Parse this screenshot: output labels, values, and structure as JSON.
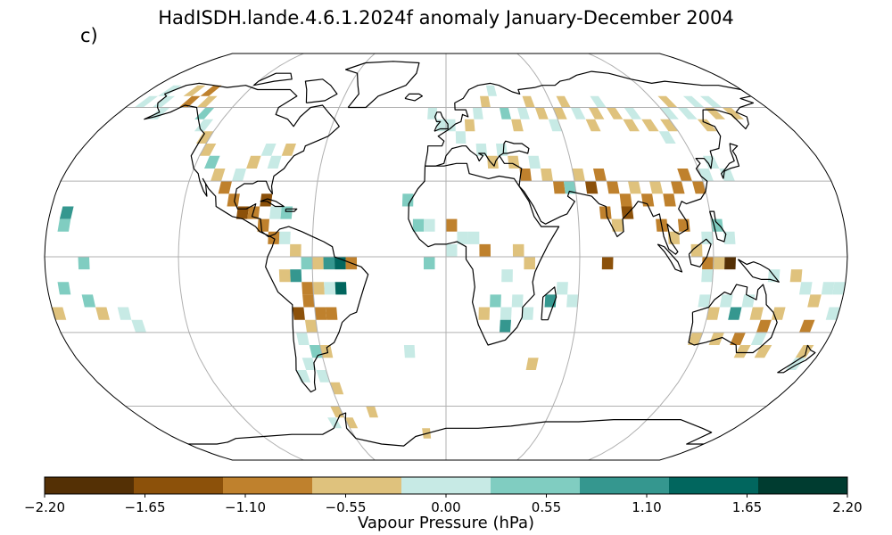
{
  "map": {
    "title": "HadISDH.lande.4.6.1.2024f anomaly January-December 2004",
    "panel_label": "c)",
    "projection": "Robinson",
    "graticule": true,
    "coastlines": true
  },
  "colorbar": {
    "label": "Vapour Pressure (hPa)",
    "ticks": [
      "−2.20",
      "−1.65",
      "−1.10",
      "−0.55",
      "0.00",
      "0.55",
      "1.10",
      "1.65",
      "2.20"
    ],
    "bins": [
      -2.2,
      -1.65,
      -1.1,
      -0.55,
      0.0,
      0.55,
      1.1,
      1.65,
      2.2
    ],
    "colors": [
      "#543005",
      "#8c510a",
      "#bf812d",
      "#dfc27d",
      "#c7eae5",
      "#80cdc1",
      "#35978f",
      "#01665e",
      "#003c30"
    ],
    "palette": "BrBG"
  },
  "chart_data": {
    "type": "heatmap",
    "title": "HadISDH.lande.4.6.1.2024f anomaly January-December 2004",
    "colorbar_label": "Vapour Pressure (hPa)",
    "units": "hPa",
    "grid_resolution_deg": 5,
    "cells": [
      {
        "lon": -172.5,
        "lat": 62.5,
        "v": 0.3
      },
      {
        "lon": -167.5,
        "lat": 67.5,
        "v": 0.4
      },
      {
        "lon": -162.5,
        "lat": 62.5,
        "v": 0.3
      },
      {
        "lon": -157.5,
        "lat": 57.5,
        "v": 0.2
      },
      {
        "lon": -152.5,
        "lat": 67.5,
        "v": -0.3
      },
      {
        "lon": -147.5,
        "lat": 62.5,
        "v": -0.7
      },
      {
        "lon": -142.5,
        "lat": 67.5,
        "v": -0.8
      },
      {
        "lon": -137.5,
        "lat": 62.5,
        "v": -0.4
      },
      {
        "lon": -132.5,
        "lat": 57.5,
        "v": 0.7
      },
      {
        "lon": -127.5,
        "lat": 52.5,
        "v": 0.3
      },
      {
        "lon": -122.5,
        "lat": 47.5,
        "v": -0.3
      },
      {
        "lon": -117.5,
        "lat": 42.5,
        "v": -0.2
      },
      {
        "lon": -112.5,
        "lat": 37.5,
        "v": 0.6
      },
      {
        "lon": -107.5,
        "lat": 32.5,
        "v": -0.4
      },
      {
        "lon": -102.5,
        "lat": 27.5,
        "v": -0.6
      },
      {
        "lon": -97.5,
        "lat": 32.5,
        "v": 0.3
      },
      {
        "lon": -92.5,
        "lat": 37.5,
        "v": -0.3
      },
      {
        "lon": -87.5,
        "lat": 42.5,
        "v": 0.2
      },
      {
        "lon": -82.5,
        "lat": 37.5,
        "v": 0.4
      },
      {
        "lon": -77.5,
        "lat": 42.5,
        "v": -0.2
      },
      {
        "lon": -97.5,
        "lat": 22.5,
        "v": -0.9
      },
      {
        "lon": -92.5,
        "lat": 17.5,
        "v": -1.2
      },
      {
        "lon": -87.5,
        "lat": 17.5,
        "v": -0.8
      },
      {
        "lon": -82.5,
        "lat": 22.5,
        "v": -1.3
      },
      {
        "lon": -77.5,
        "lat": 17.5,
        "v": 0.5
      },
      {
        "lon": -72.5,
        "lat": 17.5,
        "v": 0.7
      },
      {
        "lon": -82.5,
        "lat": 12.5,
        "v": -0.6
      },
      {
        "lon": -77.5,
        "lat": 7.5,
        "v": -0.7
      },
      {
        "lon": -72.5,
        "lat": 7.5,
        "v": 0.3
      },
      {
        "lon": -67.5,
        "lat": 2.5,
        "v": -0.5
      },
      {
        "lon": -62.5,
        "lat": -2.5,
        "v": 0.8
      },
      {
        "lon": -57.5,
        "lat": -2.5,
        "v": -0.3
      },
      {
        "lon": -52.5,
        "lat": -2.5,
        "v": 1.4
      },
      {
        "lon": -47.5,
        "lat": -2.5,
        "v": 2.0
      },
      {
        "lon": -42.5,
        "lat": -2.5,
        "v": -1.0
      },
      {
        "lon": -72.5,
        "lat": -7.5,
        "v": -0.3
      },
      {
        "lon": -67.5,
        "lat": -7.5,
        "v": 1.2
      },
      {
        "lon": -62.5,
        "lat": -12.5,
        "v": -0.8
      },
      {
        "lon": -57.5,
        "lat": -12.5,
        "v": -0.5
      },
      {
        "lon": -52.5,
        "lat": -12.5,
        "v": 0.3
      },
      {
        "lon": -47.5,
        "lat": -12.5,
        "v": 2.1
      },
      {
        "lon": -62.5,
        "lat": -17.5,
        "v": -0.9
      },
      {
        "lon": -57.5,
        "lat": -22.5,
        "v": -1.0
      },
      {
        "lon": -52.5,
        "lat": -22.5,
        "v": -0.6
      },
      {
        "lon": -67.5,
        "lat": -22.5,
        "v": -1.4
      },
      {
        "lon": -62.5,
        "lat": -27.5,
        "v": -0.4
      },
      {
        "lon": -67.5,
        "lat": -32.5,
        "v": 0.3
      },
      {
        "lon": -62.5,
        "lat": -37.5,
        "v": 0.8
      },
      {
        "lon": -67.5,
        "lat": -42.5,
        "v": 0.4
      },
      {
        "lon": -72.5,
        "lat": -47.5,
        "v": 0.3
      },
      {
        "lon": -57.5,
        "lat": -37.5,
        "v": -0.3
      },
      {
        "lon": -62.5,
        "lat": -47.5,
        "v": 0.2
      },
      {
        "lon": -57.5,
        "lat": -52.5,
        "v": -0.2
      },
      {
        "lon": -172.5,
        "lat": 17.5,
        "v": 1.3
      },
      {
        "lon": -172.5,
        "lat": 12.5,
        "v": 0.9
      },
      {
        "lon": -162.5,
        "lat": -2.5,
        "v": 0.8
      },
      {
        "lon": -172.5,
        "lat": -12.5,
        "v": 0.7
      },
      {
        "lon": -162.5,
        "lat": -17.5,
        "v": 0.6
      },
      {
        "lon": -157.5,
        "lat": -22.5,
        "v": -0.3
      },
      {
        "lon": -177.5,
        "lat": -22.5,
        "v": -0.4
      },
      {
        "lon": -147.5,
        "lat": -22.5,
        "v": 0.4
      },
      {
        "lon": -142.5,
        "lat": -27.5,
        "v": 0.3
      },
      {
        "lon": -7.5,
        "lat": 57.5,
        "v": 0.4
      },
      {
        "lon": -2.5,
        "lat": 52.5,
        "v": 0.5
      },
      {
        "lon": 2.5,
        "lat": 52.5,
        "v": 0.3
      },
      {
        "lon": 7.5,
        "lat": 47.5,
        "v": 0.2
      },
      {
        "lon": 12.5,
        "lat": 52.5,
        "v": -0.3
      },
      {
        "lon": 17.5,
        "lat": 57.5,
        "v": 0.4
      },
      {
        "lon": 22.5,
        "lat": 62.5,
        "v": -0.3
      },
      {
        "lon": 27.5,
        "lat": 67.5,
        "v": 0.3
      },
      {
        "lon": 32.5,
        "lat": 57.5,
        "v": 0.8
      },
      {
        "lon": 37.5,
        "lat": 52.5,
        "v": -0.2
      },
      {
        "lon": 42.5,
        "lat": 57.5,
        "v": 0.3
      },
      {
        "lon": 47.5,
        "lat": 62.5,
        "v": -0.3
      },
      {
        "lon": 52.5,
        "lat": 57.5,
        "v": -0.4
      },
      {
        "lon": 57.5,
        "lat": 52.5,
        "v": 0.3
      },
      {
        "lon": 62.5,
        "lat": 57.5,
        "v": -0.3
      },
      {
        "lon": 67.5,
        "lat": 62.5,
        "v": -0.4
      },
      {
        "lon": 72.5,
        "lat": 57.5,
        "v": 0.2
      },
      {
        "lon": 77.5,
        "lat": 52.5,
        "v": -0.3
      },
      {
        "lon": 82.5,
        "lat": 57.5,
        "v": -0.2
      },
      {
        "lon": 87.5,
        "lat": 62.5,
        "v": 0.3
      },
      {
        "lon": 92.5,
        "lat": 57.5,
        "v": -0.4
      },
      {
        "lon": 97.5,
        "lat": 52.5,
        "v": -0.3
      },
      {
        "lon": 102.5,
        "lat": 57.5,
        "v": 0.3
      },
      {
        "lon": 107.5,
        "lat": 52.5,
        "v": -0.2
      },
      {
        "lon": 112.5,
        "lat": 47.5,
        "v": 0.3
      },
      {
        "lon": 117.5,
        "lat": 52.5,
        "v": -0.3
      },
      {
        "lon": 122.5,
        "lat": 57.5,
        "v": 0.4
      },
      {
        "lon": 127.5,
        "lat": 62.5,
        "v": -0.3
      },
      {
        "lon": 132.5,
        "lat": 57.5,
        "v": 0.3
      },
      {
        "lon": 137.5,
        "lat": 52.5,
        "v": -0.2
      },
      {
        "lon": 142.5,
        "lat": 62.5,
        "v": 0.5
      },
      {
        "lon": 147.5,
        "lat": 57.5,
        "v": -0.3
      },
      {
        "lon": 152.5,
        "lat": 62.5,
        "v": 0.4
      },
      {
        "lon": 157.5,
        "lat": 57.5,
        "v": -0.2
      },
      {
        "lon": 17.5,
        "lat": 42.5,
        "v": 0.3
      },
      {
        "lon": 22.5,
        "lat": 37.5,
        "v": -0.3
      },
      {
        "lon": 27.5,
        "lat": 42.5,
        "v": 0.4
      },
      {
        "lon": 32.5,
        "lat": 37.5,
        "v": -0.2
      },
      {
        "lon": 37.5,
        "lat": 32.5,
        "v": -0.7
      },
      {
        "lon": 42.5,
        "lat": 37.5,
        "v": 0.3
      },
      {
        "lon": 47.5,
        "lat": 32.5,
        "v": -0.4
      },
      {
        "lon": 52.5,
        "lat": 27.5,
        "v": -0.9
      },
      {
        "lon": 57.5,
        "lat": 27.5,
        "v": 0.7
      },
      {
        "lon": 62.5,
        "lat": 32.5,
        "v": -0.3
      },
      {
        "lon": 67.5,
        "lat": 27.5,
        "v": -1.2
      },
      {
        "lon": 72.5,
        "lat": 32.5,
        "v": -0.8
      },
      {
        "lon": 77.5,
        "lat": 27.5,
        "v": -0.9
      },
      {
        "lon": 82.5,
        "lat": 22.5,
        "v": -0.7
      },
      {
        "lon": 87.5,
        "lat": 27.5,
        "v": -0.4
      },
      {
        "lon": 92.5,
        "lat": 22.5,
        "v": -0.9
      },
      {
        "lon": 97.5,
        "lat": 27.5,
        "v": -0.3
      },
      {
        "lon": 102.5,
        "lat": 22.5,
        "v": -0.8
      },
      {
        "lon": 107.5,
        "lat": 27.5,
        "v": -1.1
      },
      {
        "lon": 112.5,
        "lat": 32.5,
        "v": -0.6
      },
      {
        "lon": 117.5,
        "lat": 27.5,
        "v": -0.9
      },
      {
        "lon": 122.5,
        "lat": 32.5,
        "v": 0.3
      },
      {
        "lon": 127.5,
        "lat": 37.5,
        "v": 0.4
      },
      {
        "lon": 132.5,
        "lat": 32.5,
        "v": 0.2
      },
      {
        "lon": 72.5,
        "lat": 17.5,
        "v": -0.6
      },
      {
        "lon": 77.5,
        "lat": 12.5,
        "v": -0.3
      },
      {
        "lon": 82.5,
        "lat": 17.5,
        "v": -1.2
      },
      {
        "lon": 97.5,
        "lat": 12.5,
        "v": -0.7
      },
      {
        "lon": 102.5,
        "lat": 7.5,
        "v": -0.4
      },
      {
        "lon": 107.5,
        "lat": 12.5,
        "v": -0.6
      },
      {
        "lon": 117.5,
        "lat": 7.5,
        "v": 0.3
      },
      {
        "lon": 122.5,
        "lat": 12.5,
        "v": 0.8
      },
      {
        "lon": 127.5,
        "lat": 7.5,
        "v": 0.3
      },
      {
        "lon": 112.5,
        "lat": 2.5,
        "v": -0.5
      },
      {
        "lon": 117.5,
        "lat": -2.5,
        "v": -0.6
      },
      {
        "lon": 122.5,
        "lat": -2.5,
        "v": -0.3
      },
      {
        "lon": 127.5,
        "lat": -2.5,
        "v": -1.9
      },
      {
        "lon": 117.5,
        "lat": -7.5,
        "v": 0.4
      },
      {
        "lon": -17.5,
        "lat": 22.5,
        "v": 0.8
      },
      {
        "lon": -12.5,
        "lat": 12.5,
        "v": 0.7
      },
      {
        "lon": -7.5,
        "lat": 12.5,
        "v": 0.4
      },
      {
        "lon": 2.5,
        "lat": 12.5,
        "v": -0.7
      },
      {
        "lon": 7.5,
        "lat": 7.5,
        "v": 0.3
      },
      {
        "lon": 12.5,
        "lat": 7.5,
        "v": 0.4
      },
      {
        "lon": 2.5,
        "lat": 2.5,
        "v": 0.3
      },
      {
        "lon": 17.5,
        "lat": 2.5,
        "v": -0.6
      },
      {
        "lon": 32.5,
        "lat": 2.5,
        "v": -0.3
      },
      {
        "lon": 37.5,
        "lat": -2.5,
        "v": -0.4
      },
      {
        "lon": 27.5,
        "lat": -7.5,
        "v": 0.3
      },
      {
        "lon": 22.5,
        "lat": -17.5,
        "v": 0.8
      },
      {
        "lon": 17.5,
        "lat": -22.5,
        "v": -0.4
      },
      {
        "lon": 27.5,
        "lat": -22.5,
        "v": 0.5
      },
      {
        "lon": 32.5,
        "lat": -17.5,
        "v": 0.3
      },
      {
        "lon": 27.5,
        "lat": -27.5,
        "v": 1.4
      },
      {
        "lon": 37.5,
        "lat": -22.5,
        "v": 0.3
      },
      {
        "lon": 47.5,
        "lat": -17.5,
        "v": 1.3
      },
      {
        "lon": 52.5,
        "lat": -12.5,
        "v": 0.4
      },
      {
        "lon": 57.5,
        "lat": -17.5,
        "v": 0.3
      },
      {
        "lon": 72.5,
        "lat": -2.5,
        "v": -1.3
      },
      {
        "lon": -7.5,
        "lat": -2.5,
        "v": 0.6
      },
      {
        "lon": -17.5,
        "lat": -37.5,
        "v": 0.4
      },
      {
        "lon": 42.5,
        "lat": -42.5,
        "v": -0.3
      },
      {
        "lon": 147.5,
        "lat": -7.5,
        "v": 0.4
      },
      {
        "lon": 157.5,
        "lat": -7.5,
        "v": -0.3
      },
      {
        "lon": 162.5,
        "lat": -12.5,
        "v": 0.3
      },
      {
        "lon": 167.5,
        "lat": -17.5,
        "v": -0.4
      },
      {
        "lon": 172.5,
        "lat": -12.5,
        "v": 0.4
      },
      {
        "lon": 117.5,
        "lat": -17.5,
        "v": 0.3
      },
      {
        "lon": 122.5,
        "lat": -22.5,
        "v": -0.4
      },
      {
        "lon": 127.5,
        "lat": -17.5,
        "v": 0.3
      },
      {
        "lon": 132.5,
        "lat": -22.5,
        "v": 1.3
      },
      {
        "lon": 137.5,
        "lat": -17.5,
        "v": 0.4
      },
      {
        "lon": 142.5,
        "lat": -22.5,
        "v": -0.3
      },
      {
        "lon": 147.5,
        "lat": -27.5,
        "v": -0.8
      },
      {
        "lon": 152.5,
        "lat": -22.5,
        "v": -0.4
      },
      {
        "lon": 117.5,
        "lat": -32.5,
        "v": -0.2
      },
      {
        "lon": 127.5,
        "lat": -32.5,
        "v": -0.3
      },
      {
        "lon": 137.5,
        "lat": -32.5,
        "v": -0.7
      },
      {
        "lon": 142.5,
        "lat": -37.5,
        "v": -0.4
      },
      {
        "lon": 147.5,
        "lat": -32.5,
        "v": 0.3
      },
      {
        "lon": 152.5,
        "lat": -37.5,
        "v": -0.3
      },
      {
        "lon": 167.5,
        "lat": -27.5,
        "v": -0.9
      },
      {
        "lon": 172.5,
        "lat": -37.5,
        "v": -0.4
      },
      {
        "lon": 172.5,
        "lat": -42.5,
        "v": 0.3
      },
      {
        "lon": 177.5,
        "lat": -22.5,
        "v": 0.4
      },
      {
        "lon": 177.5,
        "lat": -12.5,
        "v": 0.3
      },
      {
        "lon": -62.5,
        "lat": -62.5,
        "v": -0.3
      },
      {
        "lon": -57.5,
        "lat": -67.5,
        "v": -0.4
      },
      {
        "lon": -67.5,
        "lat": -67.5,
        "v": 0.3
      },
      {
        "lon": -42.5,
        "lat": -62.5,
        "v": -0.3
      },
      {
        "lon": -12.5,
        "lat": -72.5,
        "v": -0.2
      }
    ]
  }
}
